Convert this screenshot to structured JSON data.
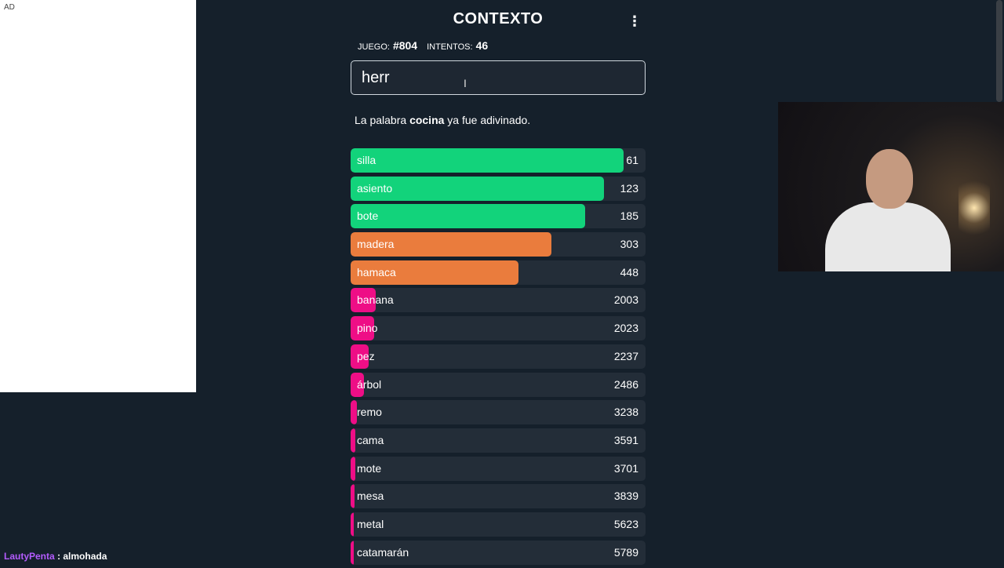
{
  "ad": {
    "label": "AD"
  },
  "header": {
    "title": "CONTEXTO",
    "menu_icon": "⋮"
  },
  "stats": {
    "game_label": "JUEGO:",
    "game_value": "#804",
    "attempts_label": "INTENTOS:",
    "attempts_value": "46"
  },
  "input": {
    "value": "herr"
  },
  "message": {
    "prefix": "La palabra ",
    "word": "cocina",
    "suffix": " ya fue adivinado."
  },
  "guesses": [
    {
      "word": "silla",
      "rank": "61",
      "fill": 0.925,
      "color": "#12d37b"
    },
    {
      "word": "asiento",
      "rank": "123",
      "fill": 0.858,
      "color": "#12d37b"
    },
    {
      "word": "bote",
      "rank": "185",
      "fill": 0.794,
      "color": "#12d37b"
    },
    {
      "word": "madera",
      "rank": "303",
      "fill": 0.682,
      "color": "#ea7c3d"
    },
    {
      "word": "hamaca",
      "rank": "448",
      "fill": 0.57,
      "color": "#ea7c3d"
    },
    {
      "word": "banana",
      "rank": "2003",
      "fill": 0.085,
      "color": "#ee0e86"
    },
    {
      "word": "pino",
      "rank": "2023",
      "fill": 0.08,
      "color": "#ee0e86"
    },
    {
      "word": "pez",
      "rank": "2237",
      "fill": 0.06,
      "color": "#ee0e86"
    },
    {
      "word": "árbol",
      "rank": "2486",
      "fill": 0.045,
      "color": "#ee0e86"
    },
    {
      "word": "remo",
      "rank": "3238",
      "fill": 0.02,
      "color": "#ee0e86"
    },
    {
      "word": "cama",
      "rank": "3591",
      "fill": 0.015,
      "color": "#ee0e86"
    },
    {
      "word": "mote",
      "rank": "3701",
      "fill": 0.015,
      "color": "#ee0e86"
    },
    {
      "word": "mesa",
      "rank": "3839",
      "fill": 0.013,
      "color": "#ee0e86"
    },
    {
      "word": "metal",
      "rank": "5623",
      "fill": 0.01,
      "color": "#ee0e86"
    },
    {
      "word": "catamarán",
      "rank": "5789",
      "fill": 0.01,
      "color": "#ee0e86"
    }
  ],
  "chat": {
    "user": "LautyPenta",
    "separator": " : ",
    "text": "almohada"
  }
}
